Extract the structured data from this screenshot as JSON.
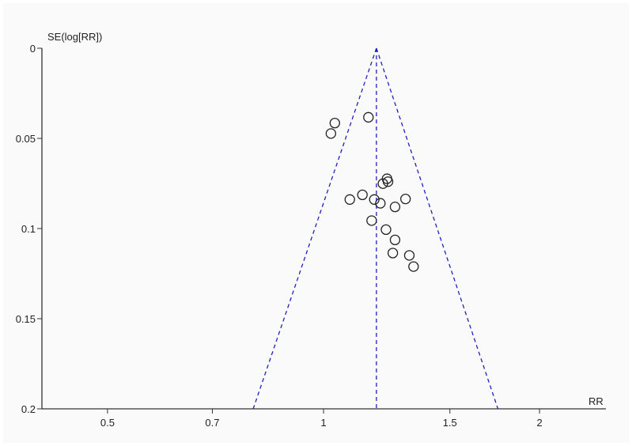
{
  "chart_data": {
    "type": "scatter",
    "subtype": "funnel",
    "xlabel": "RR",
    "ylabel": "SE(log[RR])",
    "x_scale": "log",
    "xlim": [
      0.405,
      2.37
    ],
    "ylim": [
      0,
      0.2
    ],
    "y_inverted": true,
    "x_ticks": [
      0.5,
      0.7,
      1,
      1.5,
      2
    ],
    "x_tick_labels": [
      "0.5",
      "0.7",
      "1",
      "1.5",
      "2"
    ],
    "y_ticks": [
      0,
      0.05,
      0.1,
      0.15,
      0.2
    ],
    "y_tick_labels": [
      "0",
      "0.05",
      "0.1",
      "0.15",
      "0.2"
    ],
    "pooled_rr": 1.185,
    "funnel_limits_at_se_max": [
      0.798,
      1.75
    ],
    "grid": false,
    "colors": {
      "funnel": "#1f1fbf",
      "points": "#222222",
      "background": "#fafafa"
    },
    "points": [
      {
        "rr": 1.037,
        "se": 0.0415
      },
      {
        "rr": 1.024,
        "se": 0.0473
      },
      {
        "rr": 1.155,
        "se": 0.0383
      },
      {
        "rr": 1.226,
        "se": 0.0724
      },
      {
        "rr": 1.23,
        "se": 0.074
      },
      {
        "rr": 1.21,
        "se": 0.0751
      },
      {
        "rr": 1.088,
        "se": 0.0839
      },
      {
        "rr": 1.133,
        "se": 0.0813
      },
      {
        "rr": 1.177,
        "se": 0.0839
      },
      {
        "rr": 1.2,
        "se": 0.086
      },
      {
        "rr": 1.258,
        "se": 0.088
      },
      {
        "rr": 1.301,
        "se": 0.0836
      },
      {
        "rr": 1.167,
        "se": 0.0956
      },
      {
        "rr": 1.222,
        "se": 0.1006
      },
      {
        "rr": 1.258,
        "se": 0.1063
      },
      {
        "rr": 1.249,
        "se": 0.1136
      },
      {
        "rr": 1.317,
        "se": 0.1149
      },
      {
        "rr": 1.335,
        "se": 0.1211
      }
    ]
  }
}
